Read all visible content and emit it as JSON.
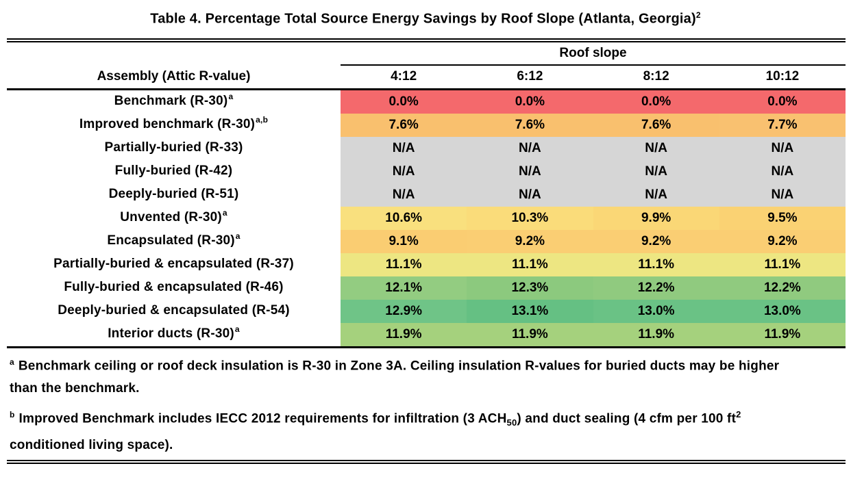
{
  "title": {
    "text": "Table 4. Percentage Total Source Energy Savings by Roof Slope (Atlanta, Georgia)",
    "sup": "2"
  },
  "table": {
    "group_header": "Roof slope",
    "corner_header": "Assembly (Attic R-value)",
    "slopes": [
      "4:12",
      "6:12",
      "8:12",
      "10:12"
    ],
    "na_color": "#D6D6D6",
    "rows": [
      {
        "label": "Benchmark (R-30)",
        "sup": "a",
        "values": [
          "0.0%",
          "0.0%",
          "0.0%",
          "0.0%"
        ],
        "colors": [
          "#F4696C",
          "#F4696C",
          "#F4696C",
          "#F4696C"
        ]
      },
      {
        "label": "Improved benchmark (R-30)",
        "sup": "a,b",
        "values": [
          "7.6%",
          "7.6%",
          "7.6%",
          "7.7%"
        ],
        "colors": [
          "#F9C06E",
          "#F9C06E",
          "#F9C06E",
          "#F9C170"
        ]
      },
      {
        "label": "Partially-buried (R-33)",
        "sup": "",
        "values": [
          "N/A",
          "N/A",
          "N/A",
          "N/A"
        ],
        "colors": [
          "#D6D6D6",
          "#D6D6D6",
          "#D6D6D6",
          "#D6D6D6"
        ]
      },
      {
        "label": "Fully-buried (R-42)",
        "sup": "",
        "values": [
          "N/A",
          "N/A",
          "N/A",
          "N/A"
        ],
        "colors": [
          "#D6D6D6",
          "#D6D6D6",
          "#D6D6D6",
          "#D6D6D6"
        ]
      },
      {
        "label": "Deeply-buried (R-51)",
        "sup": "",
        "values": [
          "N/A",
          "N/A",
          "N/A",
          "N/A"
        ],
        "colors": [
          "#D6D6D6",
          "#D6D6D6",
          "#D6D6D6",
          "#D6D6D6"
        ]
      },
      {
        "label": "Unvented (R-30)",
        "sup": "a",
        "values": [
          "10.6%",
          "10.3%",
          "9.9%",
          "9.5%"
        ],
        "colors": [
          "#F9E07E",
          "#FADC7A",
          "#FAD776",
          "#FAD273"
        ]
      },
      {
        "label": "Encapsulated (R-30)",
        "sup": "a",
        "values": [
          "9.1%",
          "9.2%",
          "9.2%",
          "9.2%"
        ],
        "colors": [
          "#FACD72",
          "#FACE73",
          "#FACE73",
          "#FACE73"
        ]
      },
      {
        "label": "Partially-buried & encapsulated (R-37)",
        "sup": "",
        "values": [
          "11.1%",
          "11.1%",
          "11.1%",
          "11.1%"
        ],
        "colors": [
          "#EDE682",
          "#EDE682",
          "#EDE682",
          "#EDE682"
        ]
      },
      {
        "label": "Fully-buried & encapsulated (R-46)",
        "sup": "",
        "values": [
          "12.1%",
          "12.3%",
          "12.2%",
          "12.2%"
        ],
        "colors": [
          "#93CC81",
          "#8CC97E",
          "#90CA7F",
          "#90CA7F"
        ]
      },
      {
        "label": "Deeply-buried & encapsulated  (R-54)",
        "sup": "",
        "values": [
          "12.9%",
          "13.1%",
          "13.0%",
          "13.0%"
        ],
        "colors": [
          "#6FC487",
          "#65C083",
          "#6AC285",
          "#6AC285"
        ]
      },
      {
        "label": "Interior ducts (R-30)",
        "sup": "a",
        "values": [
          "11.9%",
          "11.9%",
          "11.9%",
          "11.9%"
        ],
        "colors": [
          "#A5D17D",
          "#A5D17D",
          "#A5D17D",
          "#A5D17D"
        ]
      }
    ]
  },
  "footnotes": [
    {
      "marker": "a",
      "parts": [
        {
          "t": "text",
          "v": "Benchmark ceiling or roof deck insulation is R-30 in Zone 3A. Ceiling insulation R-values for buried ducts may be higher than the benchmark."
        }
      ]
    },
    {
      "marker": "b",
      "parts": [
        {
          "t": "text",
          "v": "Improved Benchmark includes IECC 2012 requirements for infiltration (3 ACH"
        },
        {
          "t": "sub",
          "v": "50"
        },
        {
          "t": "text",
          "v": ") and duct sealing (4 cfm per 100 ft"
        },
        {
          "t": "sup",
          "v": "2"
        },
        {
          "t": "text",
          "v": " conditioned living space)."
        }
      ]
    }
  ]
}
